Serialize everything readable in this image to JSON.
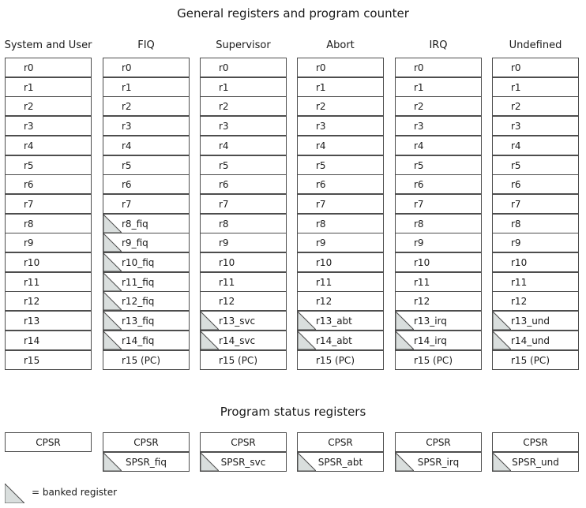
{
  "general_title": "General registers and program counter",
  "status_title": "Program status registers",
  "legend_label": "= banked register",
  "banked_fill": "#d9dedd",
  "modes": [
    {
      "name": "System and User",
      "registers": [
        {
          "label": "r0",
          "banked": false
        },
        {
          "label": "r1",
          "banked": false
        },
        {
          "label": "r2",
          "banked": false
        },
        {
          "label": "r3",
          "banked": false
        },
        {
          "label": "r4",
          "banked": false
        },
        {
          "label": "r5",
          "banked": false
        },
        {
          "label": "r6",
          "banked": false
        },
        {
          "label": "r7",
          "banked": false
        },
        {
          "label": "r8",
          "banked": false
        },
        {
          "label": "r9",
          "banked": false
        },
        {
          "label": "r10",
          "banked": false
        },
        {
          "label": "r11",
          "banked": false
        },
        {
          "label": "r12",
          "banked": false
        },
        {
          "label": "r13",
          "banked": false
        },
        {
          "label": "r14",
          "banked": false
        },
        {
          "label": "r15",
          "banked": false
        }
      ],
      "cpsr": "CPSR",
      "spsr": null
    },
    {
      "name": "FIQ",
      "registers": [
        {
          "label": "r0",
          "banked": false
        },
        {
          "label": "r1",
          "banked": false
        },
        {
          "label": "r2",
          "banked": false
        },
        {
          "label": "r3",
          "banked": false
        },
        {
          "label": "r4",
          "banked": false
        },
        {
          "label": "r5",
          "banked": false
        },
        {
          "label": "r6",
          "banked": false
        },
        {
          "label": "r7",
          "banked": false
        },
        {
          "label": "r8_fiq",
          "banked": true
        },
        {
          "label": "r9_fiq",
          "banked": true
        },
        {
          "label": "r10_fiq",
          "banked": true
        },
        {
          "label": "r11_fiq",
          "banked": true
        },
        {
          "label": "r12_fiq",
          "banked": true
        },
        {
          "label": "r13_fiq",
          "banked": true
        },
        {
          "label": "r14_fiq",
          "banked": true
        },
        {
          "label": "r15 (PC)",
          "banked": false
        }
      ],
      "cpsr": "CPSR",
      "spsr": "SPSR_fiq"
    },
    {
      "name": "Supervisor",
      "registers": [
        {
          "label": "r0",
          "banked": false
        },
        {
          "label": "r1",
          "banked": false
        },
        {
          "label": "r2",
          "banked": false
        },
        {
          "label": "r3",
          "banked": false
        },
        {
          "label": "r4",
          "banked": false
        },
        {
          "label": "r5",
          "banked": false
        },
        {
          "label": "r6",
          "banked": false
        },
        {
          "label": "r7",
          "banked": false
        },
        {
          "label": "r8",
          "banked": false
        },
        {
          "label": "r9",
          "banked": false
        },
        {
          "label": "r10",
          "banked": false
        },
        {
          "label": "r11",
          "banked": false
        },
        {
          "label": "r12",
          "banked": false
        },
        {
          "label": "r13_svc",
          "banked": true
        },
        {
          "label": "r14_svc",
          "banked": true
        },
        {
          "label": "r15 (PC)",
          "banked": false
        }
      ],
      "cpsr": "CPSR",
      "spsr": "SPSR_svc"
    },
    {
      "name": "Abort",
      "registers": [
        {
          "label": "r0",
          "banked": false
        },
        {
          "label": "r1",
          "banked": false
        },
        {
          "label": "r2",
          "banked": false
        },
        {
          "label": "r3",
          "banked": false
        },
        {
          "label": "r4",
          "banked": false
        },
        {
          "label": "r5",
          "banked": false
        },
        {
          "label": "r6",
          "banked": false
        },
        {
          "label": "r7",
          "banked": false
        },
        {
          "label": "r8",
          "banked": false
        },
        {
          "label": "r9",
          "banked": false
        },
        {
          "label": "r10",
          "banked": false
        },
        {
          "label": "r11",
          "banked": false
        },
        {
          "label": "r12",
          "banked": false
        },
        {
          "label": "r13_abt",
          "banked": true
        },
        {
          "label": "r14_abt",
          "banked": true
        },
        {
          "label": "r15 (PC)",
          "banked": false
        }
      ],
      "cpsr": "CPSR",
      "spsr": "SPSR_abt"
    },
    {
      "name": "IRQ",
      "registers": [
        {
          "label": "r0",
          "banked": false
        },
        {
          "label": "r1",
          "banked": false
        },
        {
          "label": "r2",
          "banked": false
        },
        {
          "label": "r3",
          "banked": false
        },
        {
          "label": "r4",
          "banked": false
        },
        {
          "label": "r5",
          "banked": false
        },
        {
          "label": "r6",
          "banked": false
        },
        {
          "label": "r7",
          "banked": false
        },
        {
          "label": "r8",
          "banked": false
        },
        {
          "label": "r9",
          "banked": false
        },
        {
          "label": "r10",
          "banked": false
        },
        {
          "label": "r11",
          "banked": false
        },
        {
          "label": "r12",
          "banked": false
        },
        {
          "label": "r13_irq",
          "banked": true
        },
        {
          "label": "r14_irq",
          "banked": true
        },
        {
          "label": "r15 (PC)",
          "banked": false
        }
      ],
      "cpsr": "CPSR",
      "spsr": "SPSR_irq"
    },
    {
      "name": "Undefined",
      "registers": [
        {
          "label": "r0",
          "banked": false
        },
        {
          "label": "r1",
          "banked": false
        },
        {
          "label": "r2",
          "banked": false
        },
        {
          "label": "r3",
          "banked": false
        },
        {
          "label": "r4",
          "banked": false
        },
        {
          "label": "r5",
          "banked": false
        },
        {
          "label": "r6",
          "banked": false
        },
        {
          "label": "r7",
          "banked": false
        },
        {
          "label": "r8",
          "banked": false
        },
        {
          "label": "r9",
          "banked": false
        },
        {
          "label": "r10",
          "banked": false
        },
        {
          "label": "r11",
          "banked": false
        },
        {
          "label": "r12",
          "banked": false
        },
        {
          "label": "r13_und",
          "banked": true
        },
        {
          "label": "r14_und",
          "banked": true
        },
        {
          "label": "r15 (PC)",
          "banked": false
        }
      ],
      "cpsr": "CPSR",
      "spsr": "SPSR_und"
    }
  ]
}
